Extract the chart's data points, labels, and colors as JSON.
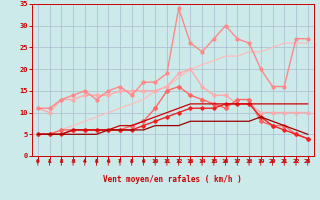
{
  "background_color": "#cceaea",
  "grid_color": "#aabbcc",
  "xlabel": "Vent moyen/en rafales ( km/h )",
  "xlabel_color": "#cc0000",
  "tick_color": "#cc0000",
  "xlim": [
    -0.5,
    23.5
  ],
  "ylim": [
    0,
    35
  ],
  "yticks": [
    0,
    5,
    10,
    15,
    20,
    25,
    30,
    35
  ],
  "xticks": [
    0,
    1,
    2,
    3,
    4,
    5,
    6,
    7,
    8,
    9,
    10,
    11,
    12,
    13,
    14,
    15,
    16,
    17,
    18,
    19,
    20,
    21,
    22,
    23
  ],
  "series": [
    {
      "color": "#ffbbbb",
      "lw": 0.9,
      "marker": null,
      "ms": 0,
      "data": [
        5,
        5,
        6,
        7,
        8,
        9,
        10,
        11,
        12,
        13,
        15,
        16,
        18,
        20,
        21,
        22,
        23,
        23,
        24,
        24,
        25,
        26,
        26,
        26
      ]
    },
    {
      "color": "#ffaaaa",
      "lw": 1.0,
      "marker": "o",
      "ms": 2.0,
      "data": [
        11,
        10,
        13,
        13,
        14,
        14,
        14,
        15,
        15,
        15,
        15,
        16,
        19,
        20,
        16,
        14,
        14,
        12,
        12,
        10,
        10,
        10,
        10,
        10
      ]
    },
    {
      "color": "#ff8888",
      "lw": 1.0,
      "marker": "o",
      "ms": 2.0,
      "data": [
        11,
        11,
        13,
        14,
        15,
        13,
        15,
        16,
        14,
        17,
        17,
        19,
        34,
        26,
        24,
        27,
        30,
        27,
        26,
        20,
        16,
        16,
        27,
        27
      ]
    },
    {
      "color": "#ff6666",
      "lw": 1.0,
      "marker": "D",
      "ms": 2.0,
      "data": [
        5,
        5,
        6,
        6,
        6,
        6,
        6,
        6,
        7,
        8,
        11,
        15,
        16,
        14,
        13,
        12,
        11,
        13,
        13,
        8,
        7,
        7,
        5,
        4
      ]
    },
    {
      "color": "#ee2222",
      "lw": 1.0,
      "marker": "D",
      "ms": 1.8,
      "data": [
        5,
        5,
        5,
        6,
        6,
        6,
        6,
        6,
        6,
        7,
        8,
        9,
        10,
        11,
        11,
        11,
        12,
        12,
        12,
        9,
        7,
        6,
        5,
        4
      ]
    },
    {
      "color": "#cc0000",
      "lw": 0.9,
      "marker": null,
      "ms": 0,
      "data": [
        5,
        5,
        5,
        6,
        6,
        6,
        6,
        7,
        7,
        8,
        9,
        10,
        11,
        12,
        12,
        12,
        12,
        12,
        12,
        12,
        12,
        12,
        12,
        12
      ]
    },
    {
      "color": "#990000",
      "lw": 0.9,
      "marker": null,
      "ms": 0,
      "data": [
        5,
        5,
        5,
        5,
        5,
        5,
        6,
        6,
        6,
        6,
        7,
        7,
        7,
        8,
        8,
        8,
        8,
        8,
        8,
        9,
        8,
        7,
        6,
        5
      ]
    }
  ]
}
